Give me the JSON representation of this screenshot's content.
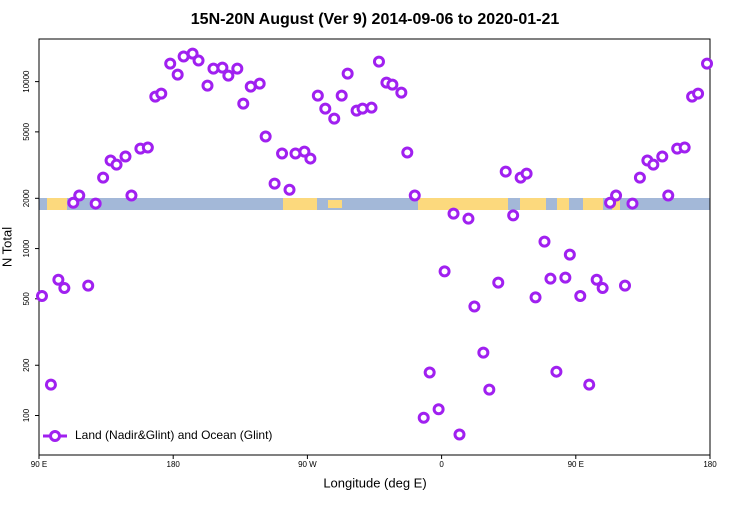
{
  "chart_data": {
    "type": "scatter",
    "title": "15N-20N August (Ver 9)   2014-09-06 to 2020-01-21",
    "x_label": "Longitude (deg E)",
    "y_label": "N Total",
    "xlim": [
      90,
      540
    ],
    "xticks": [
      {
        "value": 90,
        "label": "90 E"
      },
      180,
      {
        "value": 270,
        "label": "90 W"
      },
      {
        "value": 360,
        "label": "0"
      },
      {
        "value": 450,
        "label": "90 E"
      },
      {
        "value": 540,
        "label": "180"
      }
    ],
    "ylim": [
      58,
      18000
    ],
    "yticks": [
      100,
      200,
      500,
      1000,
      2000,
      5000,
      10000
    ],
    "log_y": true,
    "legend_position": "bottom-left",
    "series": [
      {
        "name": "Land (Nadir&Glint) and Ocean (Glint)",
        "color": "#a020f0",
        "x": [
          92,
          98,
          103,
          107,
          113,
          117,
          123,
          128,
          133,
          138,
          142,
          148,
          152,
          158,
          163,
          168,
          172,
          178,
          183,
          187,
          193,
          197,
          203,
          207,
          213,
          217,
          223,
          227,
          232,
          238,
          242,
          248,
          253,
          258,
          262,
          268,
          272,
          277,
          282,
          288,
          293,
          297,
          303,
          307,
          313,
          318,
          323,
          327,
          333,
          337,
          342,
          348,
          352,
          358,
          362,
          368,
          372,
          378,
          382,
          388,
          392,
          398,
          403,
          408,
          413,
          417,
          423,
          429,
          433,
          437,
          443,
          446,
          453,
          459,
          464,
          468,
          473,
          477,
          483,
          488,
          493,
          498,
          502,
          508,
          512,
          518,
          523,
          528,
          532,
          538
        ],
        "values": [
          520,
          153,
          650,
          580,
          1880,
          2080,
          600,
          1860,
          2660,
          3370,
          3180,
          3560,
          2080,
          3970,
          4030,
          8130,
          8470,
          12820,
          11020,
          14130,
          14720,
          13370,
          9460,
          11970,
          12130,
          10860,
          11970,
          7380,
          9330,
          9730,
          4690,
          2450,
          3710,
          2250,
          3710,
          3810,
          3460,
          8240,
          6890,
          6000,
          8240,
          11170,
          6700,
          6890,
          6980,
          13180,
          9860,
          9590,
          8590,
          3760,
          2080,
          97,
          181,
          109,
          730,
          1620,
          77,
          1510,
          450,
          238,
          143,
          625,
          2890,
          1580,
          2660,
          2810,
          510,
          1100,
          660,
          183,
          670,
          920,
          520,
          153,
          650,
          580,
          1880,
          2080,
          600,
          1860,
          2660,
          3370,
          3180,
          3560,
          2080,
          3970,
          4030,
          8130,
          8470,
          12820
        ]
      }
    ]
  }
}
